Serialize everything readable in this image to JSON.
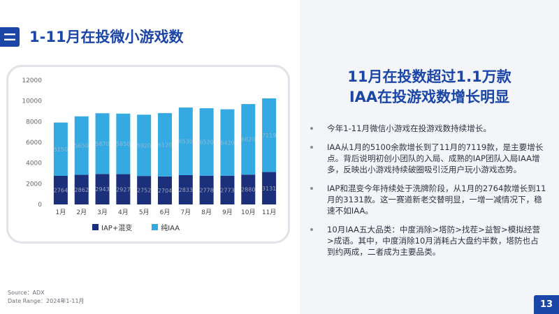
{
  "section": {
    "icon": "double-line-icon",
    "title": "1-11月在投微小游戏数"
  },
  "right": {
    "title_lines": [
      "11月在投数超过1.1万款",
      "IAA在投游戏数增长明显"
    ],
    "bullets": [
      "今年1-11月微信小游戏在投游戏数持续增长。",
      "IAA从1月的5100余款增长到了11月的7119款，是主要增长点。背后说明初创小团队的入局、成熟的IAP团队入局IAA增多，反映出小游戏持续破圈吸引泛用户玩小游戏态势。",
      "IAP和混变今年持续处于洗牌阶段，从1月的2764款增长到11月的3131款。这一赛道新老交替明显，一增一减情况下，稳速不如IAA。",
      "10月IAA五大品类：中度消除>塔防>找茬>益智>模拟经营>成语。其中，中度消除10月消耗占大盘约半数，塔防也占到约两成，二者成为主要品类。"
    ]
  },
  "source": {
    "line1": "Source：ADX",
    "line2": "Date Range：2024年1-11月"
  },
  "page_number": "13",
  "colors": {
    "accent": "#1b46a8",
    "iap": "#1c2f7a",
    "iaa": "#35a9e1",
    "panel": "#f3f5f8"
  },
  "chart_data": {
    "type": "bar",
    "stacked": true,
    "categories": [
      "1月",
      "2月",
      "3月",
      "4月",
      "5月",
      "6月",
      "7月",
      "8月",
      "9月",
      "10月",
      "11月"
    ],
    "series": [
      {
        "name": "IAP+混变",
        "color": "#1c2f7a",
        "values": [
          2764,
          2862,
          2943,
          2927,
          2752,
          2704,
          2833,
          2778,
          2773,
          2880,
          3131
        ]
      },
      {
        "name": "纯IAA",
        "color": "#35a9e1",
        "values": [
          5150,
          5650,
          5870,
          5850,
          5920,
          6120,
          6530,
          6520,
          6420,
          6820,
          7119
        ]
      }
    ],
    "y_ticks": [
      0,
      2000,
      4000,
      6000,
      8000,
      10000,
      12000
    ],
    "ylim": [
      0,
      12000
    ],
    "grid": false,
    "legend": "bottom",
    "title": "",
    "xlabel": "",
    "ylabel": ""
  }
}
